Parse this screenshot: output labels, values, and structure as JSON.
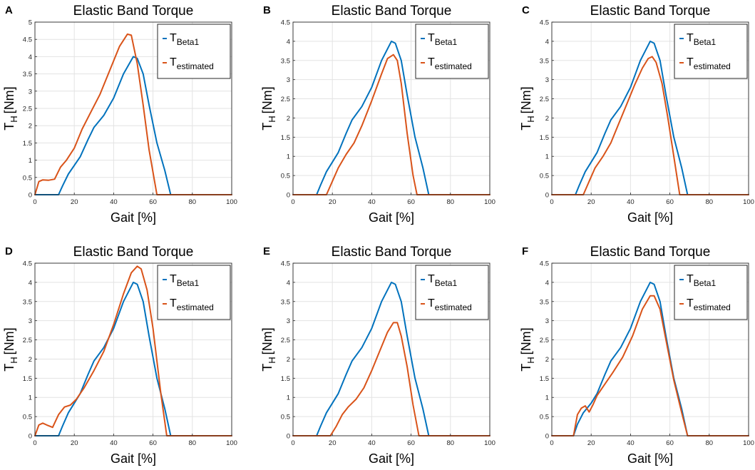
{
  "chart_data": [
    {
      "panel": "A",
      "type": "line",
      "title": "Elastic Band Torque",
      "xlabel": "Gait [%]",
      "ylabel_main": "T",
      "ylabel_sub": "H",
      "ylabel_unit": "[Nm]",
      "xlim": [
        0,
        100
      ],
      "ylim": [
        0,
        5
      ],
      "yticks": [
        0,
        0.5,
        1,
        1.5,
        2,
        2.5,
        3,
        3.5,
        4,
        4.5,
        5
      ],
      "xticks": [
        0,
        20,
        40,
        60,
        80,
        100
      ],
      "grid": true,
      "legend": "top-right",
      "series": [
        {
          "name_main": "T",
          "name_sub": "Beta1",
          "color": "#0072BD",
          "x": [
            0,
            12,
            14,
            17,
            20,
            23,
            27,
            30,
            35,
            40,
            45,
            50,
            52,
            55,
            58,
            62,
            66,
            69,
            100
          ],
          "y": [
            0,
            0,
            0.25,
            0.6,
            0.85,
            1.1,
            1.6,
            1.95,
            2.3,
            2.8,
            3.5,
            4.0,
            3.95,
            3.5,
            2.6,
            1.5,
            0.7,
            0,
            0
          ]
        },
        {
          "name_main": "T",
          "name_sub": "estimated",
          "color": "#D95319",
          "x": [
            0,
            2,
            4,
            7,
            10,
            13,
            16,
            20,
            24,
            28,
            33,
            38,
            43,
            47,
            49,
            52,
            55,
            58,
            62,
            100
          ],
          "y": [
            0,
            0.38,
            0.43,
            0.42,
            0.45,
            0.8,
            1.0,
            1.35,
            1.9,
            2.35,
            2.9,
            3.6,
            4.3,
            4.65,
            4.62,
            3.8,
            2.6,
            1.3,
            0,
            0
          ]
        }
      ]
    },
    {
      "panel": "B",
      "type": "line",
      "title": "Elastic Band Torque",
      "xlabel": "Gait [%]",
      "ylabel_main": "T",
      "ylabel_sub": "H",
      "ylabel_unit": "[Nm]",
      "xlim": [
        0,
        100
      ],
      "ylim": [
        0,
        4.5
      ],
      "yticks": [
        0,
        0.5,
        1,
        1.5,
        2,
        2.5,
        3,
        3.5,
        4,
        4.5
      ],
      "xticks": [
        0,
        20,
        40,
        60,
        80,
        100
      ],
      "grid": true,
      "legend": "top-right",
      "series": [
        {
          "name_main": "T",
          "name_sub": "Beta1",
          "color": "#0072BD",
          "x": [
            0,
            12,
            14,
            17,
            20,
            23,
            27,
            30,
            35,
            40,
            45,
            50,
            52,
            55,
            58,
            62,
            66,
            69,
            100
          ],
          "y": [
            0,
            0,
            0.25,
            0.6,
            0.85,
            1.1,
            1.6,
            1.95,
            2.3,
            2.8,
            3.5,
            4.0,
            3.95,
            3.5,
            2.6,
            1.5,
            0.7,
            0,
            0
          ]
        },
        {
          "name_main": "T",
          "name_sub": "estimated",
          "color": "#D95319",
          "x": [
            0,
            17,
            20,
            23,
            27,
            31,
            35,
            40,
            45,
            48,
            51,
            53,
            55,
            58,
            61,
            63,
            100
          ],
          "y": [
            0,
            0,
            0.35,
            0.7,
            1.05,
            1.35,
            1.8,
            2.45,
            3.15,
            3.55,
            3.65,
            3.5,
            2.9,
            1.6,
            0.5,
            0,
            0
          ]
        }
      ]
    },
    {
      "panel": "C",
      "type": "line",
      "title": "Elastic Band Torque",
      "xlabel": "Gait [%]",
      "ylabel_main": "T",
      "ylabel_sub": "H",
      "ylabel_unit": "[Nm]",
      "xlim": [
        0,
        100
      ],
      "ylim": [
        0,
        4.5
      ],
      "yticks": [
        0,
        0.5,
        1,
        1.5,
        2,
        2.5,
        3,
        3.5,
        4,
        4.5
      ],
      "xticks": [
        0,
        20,
        40,
        60,
        80,
        100
      ],
      "grid": true,
      "legend": "top-right",
      "series": [
        {
          "name_main": "T",
          "name_sub": "Beta1",
          "color": "#0072BD",
          "x": [
            0,
            12,
            14,
            17,
            20,
            23,
            27,
            30,
            35,
            40,
            45,
            50,
            52,
            55,
            58,
            62,
            66,
            69,
            100
          ],
          "y": [
            0,
            0,
            0.25,
            0.6,
            0.85,
            1.1,
            1.6,
            1.95,
            2.3,
            2.8,
            3.5,
            4.0,
            3.95,
            3.5,
            2.6,
            1.5,
            0.7,
            0,
            0
          ]
        },
        {
          "name_main": "T",
          "name_sub": "estimated",
          "color": "#D95319",
          "x": [
            0,
            16,
            19,
            22,
            26,
            30,
            34,
            38,
            42,
            46,
            49,
            51,
            53,
            56,
            59,
            62,
            65,
            100
          ],
          "y": [
            0,
            0,
            0.35,
            0.7,
            1.0,
            1.35,
            1.85,
            2.35,
            2.85,
            3.3,
            3.55,
            3.6,
            3.45,
            2.9,
            2.0,
            1.0,
            0,
            0
          ]
        }
      ]
    },
    {
      "panel": "D",
      "type": "line",
      "title": "Elastic Band Torque",
      "xlabel": "Gait [%]",
      "ylabel_main": "T",
      "ylabel_sub": "H",
      "ylabel_unit": "[Nm]",
      "xlim": [
        0,
        100
      ],
      "ylim": [
        0,
        4.5
      ],
      "yticks": [
        0,
        0.5,
        1,
        1.5,
        2,
        2.5,
        3,
        3.5,
        4,
        4.5
      ],
      "xticks": [
        0,
        20,
        40,
        60,
        80,
        100
      ],
      "grid": true,
      "legend": "top-right",
      "series": [
        {
          "name_main": "T",
          "name_sub": "Beta1",
          "color": "#0072BD",
          "x": [
            0,
            12,
            14,
            17,
            20,
            23,
            27,
            30,
            35,
            40,
            45,
            50,
            52,
            55,
            58,
            62,
            66,
            69,
            100
          ],
          "y": [
            0,
            0,
            0.25,
            0.6,
            0.85,
            1.1,
            1.6,
            1.95,
            2.3,
            2.8,
            3.5,
            4.0,
            3.95,
            3.5,
            2.6,
            1.5,
            0.7,
            0,
            0
          ]
        },
        {
          "name_main": "T",
          "name_sub": "estimated",
          "color": "#D95319",
          "x": [
            0,
            2,
            4,
            6,
            9,
            12,
            15,
            18,
            21,
            25,
            30,
            35,
            40,
            45,
            49,
            52,
            54,
            57,
            60,
            64,
            67,
            100
          ],
          "y": [
            0,
            0.28,
            0.33,
            0.28,
            0.22,
            0.55,
            0.75,
            0.8,
            0.95,
            1.25,
            1.7,
            2.2,
            2.9,
            3.7,
            4.25,
            4.42,
            4.35,
            3.8,
            2.8,
            1.1,
            0,
            0
          ]
        }
      ]
    },
    {
      "panel": "E",
      "type": "line",
      "title": "Elastic Band Torque",
      "xlabel": "Gait [%]",
      "ylabel_main": "T",
      "ylabel_sub": "H",
      "ylabel_unit": "[Nm]",
      "xlim": [
        0,
        100
      ],
      "ylim": [
        0,
        4.5
      ],
      "yticks": [
        0,
        0.5,
        1,
        1.5,
        2,
        2.5,
        3,
        3.5,
        4,
        4.5
      ],
      "xticks": [
        0,
        20,
        40,
        60,
        80,
        100
      ],
      "grid": true,
      "legend": "top-right",
      "series": [
        {
          "name_main": "T",
          "name_sub": "Beta1",
          "color": "#0072BD",
          "x": [
            0,
            12,
            14,
            17,
            20,
            23,
            27,
            30,
            35,
            40,
            45,
            50,
            52,
            55,
            58,
            62,
            66,
            69,
            100
          ],
          "y": [
            0,
            0,
            0.25,
            0.6,
            0.85,
            1.1,
            1.6,
            1.95,
            2.3,
            2.8,
            3.5,
            4.0,
            3.95,
            3.5,
            2.6,
            1.5,
            0.7,
            0,
            0
          ]
        },
        {
          "name_main": "T",
          "name_sub": "estimated",
          "color": "#D95319",
          "x": [
            0,
            19,
            22,
            25,
            28,
            32,
            36,
            40,
            44,
            48,
            51,
            53,
            55,
            58,
            61,
            64,
            100
          ],
          "y": [
            0,
            0,
            0.25,
            0.55,
            0.75,
            0.95,
            1.25,
            1.7,
            2.2,
            2.7,
            2.95,
            2.95,
            2.6,
            1.8,
            0.8,
            0,
            0
          ]
        }
      ]
    },
    {
      "panel": "F",
      "type": "line",
      "title": "Elastic Band Torque",
      "xlabel": "Gait [%]",
      "ylabel_main": "T",
      "ylabel_sub": "H",
      "ylabel_unit": "[Nm]",
      "xlim": [
        0,
        100
      ],
      "ylim": [
        0,
        4.5
      ],
      "yticks": [
        0,
        0.5,
        1,
        1.5,
        2,
        2.5,
        3,
        3.5,
        4,
        4.5
      ],
      "xticks": [
        0,
        20,
        40,
        60,
        80,
        100
      ],
      "grid": true,
      "legend": "top-right",
      "series": [
        {
          "name_main": "T",
          "name_sub": "Beta1",
          "color": "#0072BD",
          "x": [
            0,
            11,
            13,
            16,
            20,
            23,
            27,
            30,
            35,
            40,
            45,
            50,
            52,
            55,
            58,
            62,
            66,
            69,
            100
          ],
          "y": [
            0,
            0,
            0.3,
            0.6,
            0.85,
            1.1,
            1.6,
            1.95,
            2.3,
            2.8,
            3.5,
            4.0,
            3.95,
            3.5,
            2.6,
            1.5,
            0.7,
            0,
            0
          ]
        },
        {
          "name_main": "T",
          "name_sub": "estimated",
          "color": "#D95319",
          "x": [
            0,
            11,
            13,
            15,
            17,
            19,
            21,
            23,
            27,
            31,
            36,
            41,
            46,
            50,
            52,
            55,
            58,
            62,
            66,
            69,
            100
          ],
          "y": [
            0,
            0,
            0.55,
            0.72,
            0.78,
            0.62,
            0.82,
            1.05,
            1.35,
            1.65,
            2.05,
            2.6,
            3.3,
            3.65,
            3.65,
            3.3,
            2.5,
            1.45,
            0.6,
            0,
            0
          ]
        }
      ]
    }
  ]
}
